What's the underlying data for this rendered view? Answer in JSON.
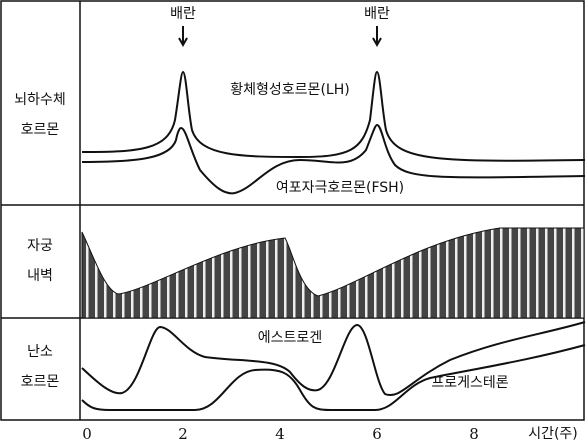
{
  "panels": [
    {
      "label": [
        "뇌하수체",
        "호르몬"
      ]
    },
    {
      "label": [
        "자궁",
        "내벽"
      ]
    },
    {
      "label": [
        "난소",
        "호르몬"
      ]
    }
  ],
  "annotations": {
    "ovulation": [
      "배란",
      "배란"
    ],
    "lh": "황체형성호르몬(LH)",
    "fsh": "여포자극호르몬(FSH)",
    "estrogen": "에스트로겐",
    "progesterone": "프로게스테론"
  },
  "x_axis": {
    "ticks": [
      "0",
      "2",
      "4",
      "6",
      "8"
    ],
    "label": "시간(주)"
  }
}
